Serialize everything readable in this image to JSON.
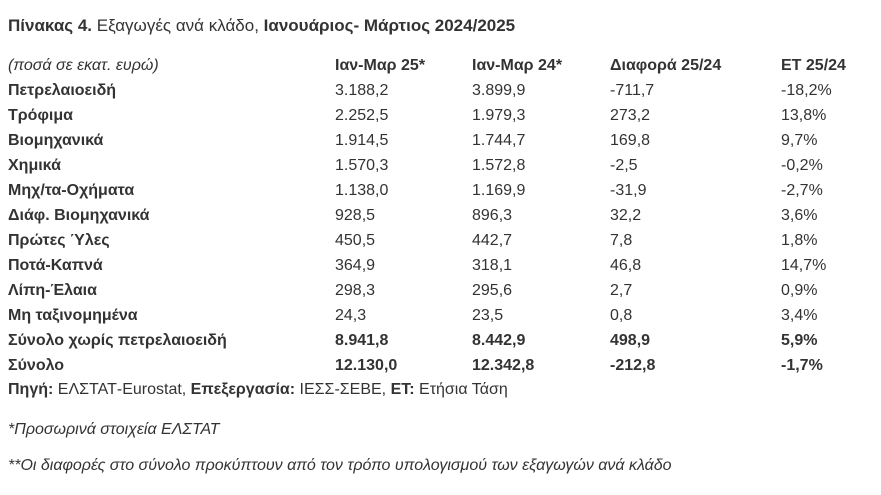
{
  "header": {
    "title": [
      {
        "text": "Πίνακας 4.",
        "bold": true
      },
      {
        "text": " Εξαγωγές ανά κλάδο, ",
        "bold": false
      },
      {
        "text": "Ιανουάριος- Μάρτιος 2024/2025",
        "bold": true
      }
    ]
  },
  "table": {
    "columns": [
      "(ποσά σε εκατ. ευρώ)",
      "Ιαν-Μαρ 25*",
      "Ιαν-Μαρ 24*",
      "Διαφορά 25/24",
      "ΕΤ 25/24"
    ],
    "rows": [
      [
        "Πετρελαιοειδή",
        "3.188,2",
        "3.899,9",
        "-711,7",
        "-18,2%"
      ],
      [
        "Τρόφιμα",
        "2.252,5",
        "1.979,3",
        "273,2",
        "13,8%"
      ],
      [
        "Βιομηχανικά",
        "1.914,5",
        "1.744,7",
        "169,8",
        "9,7%"
      ],
      [
        "Χημικά",
        "1.570,3",
        "1.572,8",
        "-2,5",
        "-0,2%"
      ],
      [
        "Μηχ/τα-Οχήματα",
        "1.138,0",
        "1.169,9",
        "-31,9",
        "-2,7%"
      ],
      [
        "Διάφ. Βιομηχανικά",
        "928,5",
        "896,3",
        "32,2",
        "3,6%"
      ],
      [
        "Πρώτες Ύλες",
        "450,5",
        "442,7",
        "7,8",
        "1,8%"
      ],
      [
        "Ποτά-Καπνά",
        "364,9",
        "318,1",
        "46,8",
        "14,7%"
      ],
      [
        "Λίπη-Έλαια",
        "298,3",
        "295,6",
        "2,7",
        "0,9%"
      ],
      [
        "Μη ταξινομημένα",
        "24,3",
        "23,5",
        "0,8",
        "3,4%"
      ]
    ],
    "totals": [
      [
        "Σύνολο χωρίς πετρελαιοειδή",
        "8.941,8",
        "8.442,9",
        "498,9",
        "5,9%"
      ],
      [
        "Σύνολο",
        "12.130,0",
        "12.342,8",
        "-212,8",
        "-1,7%"
      ]
    ]
  },
  "source": [
    {
      "text": "Πηγή:",
      "bold": true
    },
    {
      "text": " ΕΛΣΤΑΤ-Eurostat, ",
      "bold": false
    },
    {
      "text": "Επεξεργασία:",
      "bold": true
    },
    {
      "text": " ΙΕΣΣ-ΣΕΒΕ, ",
      "bold": false
    },
    {
      "text": "ΕΤ:",
      "bold": true
    },
    {
      "text": " Ετήσια Τάση",
      "bold": false
    }
  ],
  "notes": [
    "*Προσωρινά στοιχεία ΕΛΣΤΑΤ",
    "**Οι διαφορές στο σύνολο προκύπτουν από τον τρόπο υπολογισμού των εξαγωγών ανά κλάδο"
  ]
}
